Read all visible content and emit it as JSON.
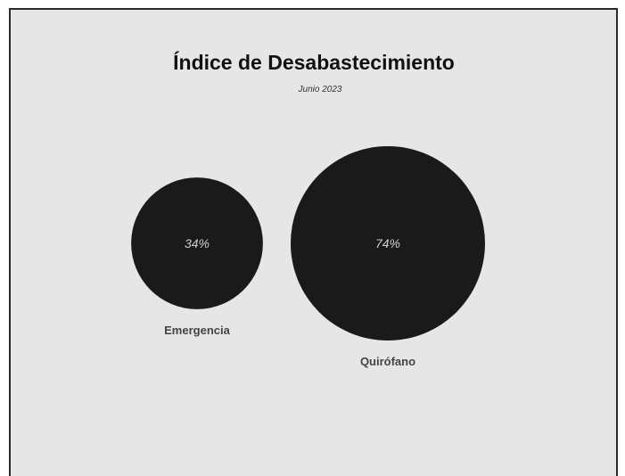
{
  "chart_data": {
    "type": "bubble",
    "title": "Índice de Desabastecimiento",
    "subtitle": "Junio 2023",
    "categories": [
      "Emergencia",
      "Quirófano"
    ],
    "values": [
      34,
      74
    ],
    "value_labels": [
      "34%",
      "74%"
    ],
    "bubble_color": "#1a1a1a",
    "grid": false,
    "legend": "none"
  },
  "colors": {
    "background": "#e6e6e6",
    "bubble": "#1a1a1a",
    "value_text": "#cfcfcf",
    "label_text": "#444444"
  }
}
